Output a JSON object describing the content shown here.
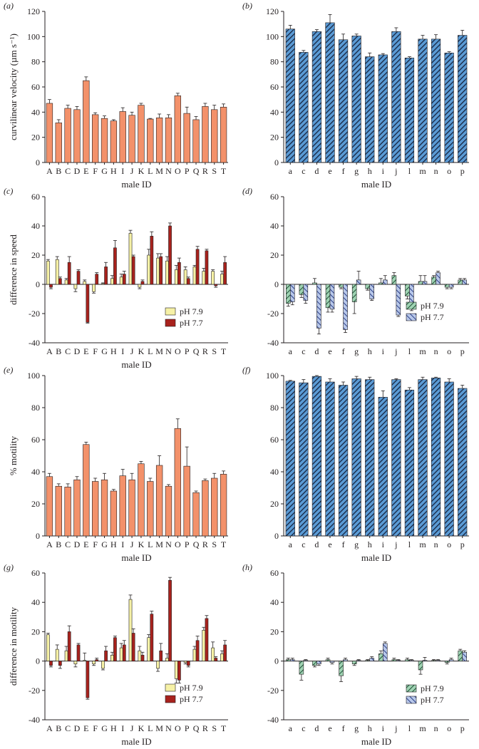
{
  "chart_data": [
    {
      "type": "bar",
      "panel_label": "(a)",
      "xlabel": "male ID",
      "ylabel": "curvilinear velocity (µm s⁻¹)",
      "ylim": [
        0,
        120
      ],
      "yticks": [
        0,
        20,
        40,
        60,
        80,
        100,
        120
      ],
      "categories": [
        "A",
        "B",
        "C",
        "D",
        "E",
        "F",
        "G",
        "H",
        "I",
        "J",
        "K",
        "L",
        "M",
        "N",
        "O",
        "P",
        "Q",
        "R",
        "S",
        "T"
      ],
      "series": [
        {
          "values": [
            47,
            31.5,
            43,
            42,
            65,
            38,
            35,
            33,
            40.5,
            37.5,
            45.5,
            34.5,
            35.5,
            35.5,
            53,
            39,
            34,
            44.5,
            42,
            44
          ],
          "errors": [
            3,
            2.5,
            2.5,
            2.5,
            3,
            1.5,
            2,
            1,
            3,
            2.5,
            1.5,
            0.5,
            3,
            2.5,
            2,
            5,
            2.5,
            2.5,
            3.5,
            2.5
          ]
        }
      ]
    },
    {
      "type": "bar",
      "panel_label": "(b)",
      "xlabel": "male ID",
      "ylabel": "",
      "ylim": [
        0,
        120
      ],
      "yticks": [
        0,
        20,
        40,
        60,
        80,
        100,
        120
      ],
      "categories": [
        "a",
        "c",
        "d",
        "e",
        "f",
        "g",
        "h",
        "i",
        "j",
        "l",
        "m",
        "n",
        "o",
        "p"
      ],
      "series": [
        {
          "values": [
            106,
            87.5,
            104,
            111,
            97.5,
            100.5,
            84,
            85.5,
            104,
            83,
            98,
            98,
            87,
            101
          ],
          "errors": [
            3,
            1.5,
            1.5,
            6.5,
            4.5,
            1.5,
            3,
            1,
            3,
            1,
            3,
            3.5,
            1,
            4
          ]
        }
      ]
    },
    {
      "type": "bar",
      "panel_label": "(c)",
      "xlabel": "male ID",
      "ylabel": "difference in speed",
      "ylim": [
        -40,
        60
      ],
      "yticks": [
        -40,
        -20,
        0,
        20,
        40,
        60
      ],
      "legend": "bottom-right",
      "categories": [
        "A",
        "B",
        "C",
        "D",
        "E",
        "F",
        "G",
        "H",
        "I",
        "J",
        "K",
        "L",
        "M",
        "N",
        "O",
        "P",
        "Q",
        "R",
        "S",
        "T"
      ],
      "series": [
        {
          "name": "pH 7.9",
          "values": [
            16,
            17,
            3,
            -3,
            2,
            -5,
            0.5,
            4,
            5,
            35,
            -2,
            20,
            18,
            16,
            10,
            10,
            12,
            9,
            9,
            7
          ],
          "errors": [
            1,
            2,
            1,
            2,
            1,
            1,
            0.5,
            2,
            2,
            2,
            1,
            4,
            3,
            3,
            3,
            2,
            1,
            2,
            1,
            2
          ]
        },
        {
          "name": "pH 7.7",
          "values": [
            -2,
            4,
            15,
            9,
            -26,
            7,
            12,
            25,
            7,
            19,
            2,
            33,
            19,
            40,
            15,
            4,
            24,
            23,
            -1,
            15
          ],
          "errors": [
            1,
            1,
            4,
            1,
            0.5,
            1,
            3,
            5,
            2,
            1,
            1,
            3,
            2,
            2,
            3,
            1,
            2,
            1,
            1,
            4
          ]
        }
      ]
    },
    {
      "type": "bar",
      "panel_label": "(d)",
      "xlabel": "",
      "ylabel": "",
      "ylim": [
        -40,
        60
      ],
      "yticks": [
        -40,
        -20,
        0,
        20,
        40,
        60
      ],
      "legend": "bottom-right",
      "categories": [
        "a",
        "c",
        "d",
        "e",
        "f",
        "g",
        "h",
        "i",
        "j",
        "l",
        "m",
        "n",
        "o",
        "p"
      ],
      "series": [
        {
          "name": "pH 7.9",
          "values": [
            -13,
            -7,
            1,
            -16,
            -2,
            -12,
            -3,
            1,
            6,
            -8,
            2,
            5,
            -2,
            3
          ],
          "errors": [
            2,
            2,
            3,
            3,
            1,
            8,
            1,
            3,
            2,
            2,
            4,
            1,
            1,
            1
          ]
        },
        {
          "name": "pH 7.7",
          "values": [
            -12,
            -11,
            -30,
            -17,
            -31,
            3,
            -10,
            3,
            -21,
            -16,
            2,
            8,
            -2,
            3
          ],
          "errors": [
            2,
            2,
            4,
            2,
            2,
            6,
            1,
            3,
            1,
            2,
            4,
            1,
            1,
            1
          ]
        }
      ]
    },
    {
      "type": "bar",
      "panel_label": "(e)",
      "xlabel": "male ID",
      "ylabel": "% motility",
      "ylim": [
        0,
        100
      ],
      "yticks": [
        0,
        20,
        40,
        60,
        80,
        100
      ],
      "categories": [
        "A",
        "B",
        "C",
        "D",
        "E",
        "F",
        "G",
        "H",
        "I",
        "J",
        "K",
        "L",
        "M",
        "N",
        "O",
        "P",
        "Q",
        "R",
        "S",
        "T"
      ],
      "series": [
        {
          "values": [
            37,
            31,
            30.5,
            35,
            57,
            34,
            35,
            28,
            37.5,
            35,
            45,
            34,
            44,
            31,
            67,
            43.5,
            27,
            34.5,
            36,
            38.5
          ],
          "errors": [
            2,
            1.5,
            2,
            2,
            1.5,
            2,
            4,
            1,
            4,
            4,
            1.5,
            2,
            6,
            1,
            6,
            12,
            1,
            1,
            3,
            2
          ]
        }
      ]
    },
    {
      "type": "bar",
      "panel_label": "(f)",
      "xlabel": "male ID",
      "ylabel": "",
      "ylim": [
        0,
        100
      ],
      "yticks": [
        0,
        20,
        40,
        60,
        80,
        100
      ],
      "categories": [
        "a",
        "c",
        "d",
        "e",
        "f",
        "g",
        "h",
        "i",
        "j",
        "l",
        "m",
        "n",
        "o",
        "p"
      ],
      "series": [
        {
          "values": [
            96.5,
            95.5,
            99.5,
            96,
            94,
            98,
            97.5,
            86.5,
            97.5,
            91,
            97.5,
            98.5,
            96,
            92
          ],
          "errors": [
            0.5,
            2,
            0.5,
            2,
            2,
            1.5,
            1.5,
            4,
            0.5,
            1.5,
            1.5,
            0.5,
            2,
            2
          ]
        }
      ]
    },
    {
      "type": "bar",
      "panel_label": "(g)",
      "xlabel": "male ID",
      "ylabel": "difference in motility",
      "ylim": [
        -40,
        60
      ],
      "yticks": [
        -40,
        -20,
        0,
        20,
        40,
        60
      ],
      "legend": "bottom-right",
      "categories": [
        "A",
        "B",
        "C",
        "D",
        "E",
        "F",
        "G",
        "H",
        "I",
        "J",
        "K",
        "L",
        "M",
        "N",
        "O",
        "P",
        "Q",
        "R",
        "S",
        "T"
      ],
      "series": [
        {
          "name": "pH 7.9",
          "values": [
            18,
            8,
            7,
            -2,
            0.5,
            -2,
            -5,
            4,
            9,
            42,
            7,
            16,
            -5,
            2,
            -12,
            -1,
            8,
            21,
            9,
            5
          ],
          "errors": [
            1,
            3,
            3,
            2,
            5,
            1,
            1,
            2,
            3,
            3,
            3,
            2,
            2,
            3,
            3,
            1,
            2,
            2,
            4,
            2
          ]
        },
        {
          "name": "pH 7.7",
          "values": [
            -3,
            -3,
            20,
            11,
            -25,
            1,
            7,
            16,
            11,
            19,
            4,
            32,
            7,
            55,
            -13,
            -3,
            14,
            29,
            2,
            11
          ],
          "errors": [
            1,
            2,
            4,
            1,
            1,
            1,
            3,
            1,
            3,
            3,
            2,
            2,
            5,
            2,
            2,
            1,
            3,
            2,
            1,
            3
          ]
        }
      ]
    },
    {
      "type": "bar",
      "panel_label": "(h)",
      "xlabel": "male ID",
      "ylabel": "",
      "ylim": [
        -40,
        60
      ],
      "yticks": [
        -40,
        -20,
        0,
        20,
        40,
        60
      ],
      "legend": "bottom-right",
      "categories": [
        "a",
        "c",
        "d",
        "e",
        "f",
        "g",
        "h",
        "i",
        "j",
        "l",
        "m",
        "n",
        "o",
        "p"
      ],
      "series": [
        {
          "name": "pH 7.9",
          "values": [
            1,
            -9,
            -3,
            1,
            -10,
            -2,
            0.5,
            5,
            1,
            1,
            -6,
            0.5,
            -1,
            7
          ],
          "errors": [
            1,
            4,
            1,
            1,
            4,
            1,
            0.5,
            2,
            1,
            1,
            3,
            0.5,
            1,
            1
          ]
        },
        {
          "name": "pH 7.7",
          "values": [
            1,
            0.5,
            -2,
            -1,
            1,
            0.5,
            2,
            12,
            0.5,
            0.5,
            0.5,
            0.5,
            1,
            6
          ],
          "errors": [
            1,
            0.5,
            1,
            1,
            1,
            0.5,
            1,
            1,
            0.5,
            0.5,
            2,
            0.5,
            1,
            1
          ]
        }
      ]
    }
  ],
  "colors": {
    "orange_fill": "#f3916a",
    "blue_fill": "#5b9bd5",
    "blue_hatch": "#16243f",
    "green_fill": "#9fd3b3",
    "green_hatch": "#1f4f36",
    "light_blue_fill": "#b8c8ea",
    "light_blue_hatch": "#2c3f86",
    "yellow_fill": "#f6f1a6",
    "dark_red_fill": "#a8221d",
    "stroke": "#231f20"
  }
}
